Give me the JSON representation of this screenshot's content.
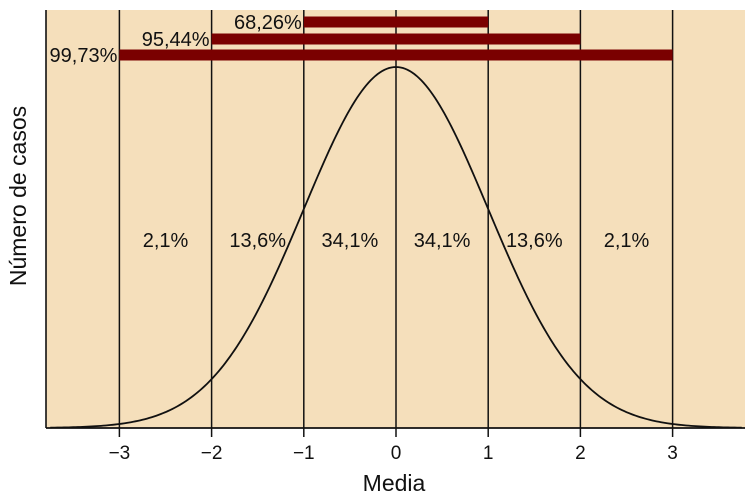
{
  "chart_data": {
    "type": "line",
    "title": "",
    "xlabel": "Media",
    "ylabel": "Número de casos",
    "xlim": [
      -3.75,
      3.75
    ],
    "grid": true,
    "tick_labels": [
      "−3",
      "−2",
      "−1",
      "0",
      "1",
      "2",
      "3"
    ],
    "tick_values": [
      -3,
      -2,
      -1,
      0,
      1,
      2,
      3
    ],
    "section_labels": [
      {
        "x": -2.5,
        "label": "2,1%"
      },
      {
        "x": -1.5,
        "label": "13,6%"
      },
      {
        "x": -0.5,
        "label": "34,1%"
      },
      {
        "x": 0.5,
        "label": "34,1%"
      },
      {
        "x": 1.5,
        "label": "13,6%"
      },
      {
        "x": 2.5,
        "label": "2,1%"
      }
    ],
    "range_bars": [
      {
        "from": -1,
        "to": 1,
        "label": "68,26%"
      },
      {
        "from": -2,
        "to": 2,
        "label": "95,44%"
      },
      {
        "from": -3,
        "to": 3,
        "label": "99,73%"
      }
    ],
    "series": [
      {
        "curve": "normal",
        "mean": 0,
        "sd": 1
      }
    ],
    "colors": {
      "background": "#f5dfbb",
      "bars": "#7a0000",
      "lines": "#111111"
    }
  }
}
